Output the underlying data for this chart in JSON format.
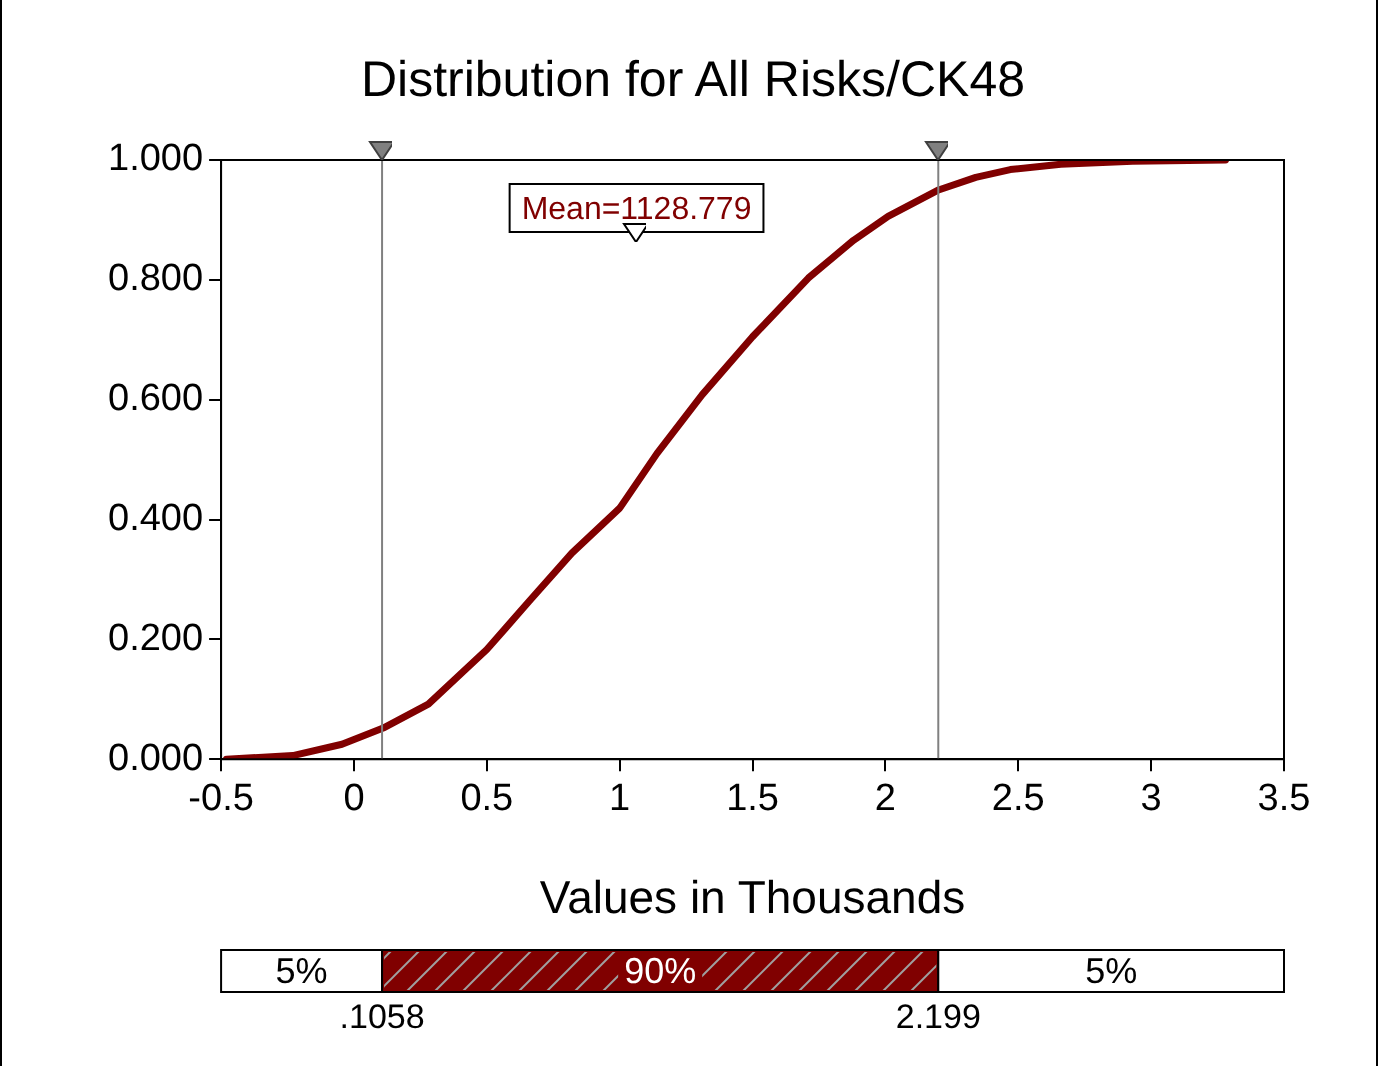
{
  "chart_data": [
    {
      "type": "line",
      "title": "Distribution for All Risks/CK48",
      "xlabel": "Values in Thousands",
      "x": [
        -0.48,
        -0.23,
        -0.045,
        0.11,
        0.28,
        0.5,
        0.66,
        0.82,
        1.0,
        1.14,
        1.31,
        1.5,
        1.71,
        1.88,
        2.01,
        2.2,
        2.34,
        2.47,
        2.66,
        2.93,
        3.28
      ],
      "series": [
        {
          "color": "#800000",
          "values": [
            0,
            0.006,
            0.025,
            0.052,
            0.092,
            0.183,
            0.264,
            0.344,
            0.419,
            0.51,
            0.608,
            0.705,
            0.803,
            0.866,
            0.906,
            0.95,
            0.971,
            0.984,
            0.993,
            0.998,
            1.0
          ]
        }
      ],
      "xlim": [
        -0.5,
        3.5
      ],
      "xticks": [
        -0.5,
        0,
        0.5,
        1,
        1.5,
        2,
        2.5,
        3,
        3.5
      ],
      "ylim": [
        0,
        1
      ],
      "yticks": [
        {
          "value": 0,
          "label": "0.000"
        },
        {
          "value": 0.2,
          "label": "0.200"
        },
        {
          "value": 0.4,
          "label": "0.400"
        },
        {
          "value": 0.6,
          "label": "0.600"
        },
        {
          "value": 0.8,
          "label": "0.800"
        },
        {
          "value": 1,
          "label": "1.000"
        }
      ],
      "ref_lines": [
        {
          "axis": "x",
          "value": 0.1058,
          "color": "#808080"
        },
        {
          "axis": "x",
          "value": 2.199,
          "color": "#808080"
        }
      ],
      "annotations": [
        "Mean=1128.779"
      ],
      "grid": false,
      "legend": false,
      "marker": "none",
      "line_style": "solid"
    },
    {
      "type": "other",
      "annotations": [
        "5%",
        "90%",
        "5%",
        ".1058",
        "2.199"
      ],
      "colors": [
        "#ffffff",
        "#800000",
        "#ffffff"
      ]
    }
  ]
}
